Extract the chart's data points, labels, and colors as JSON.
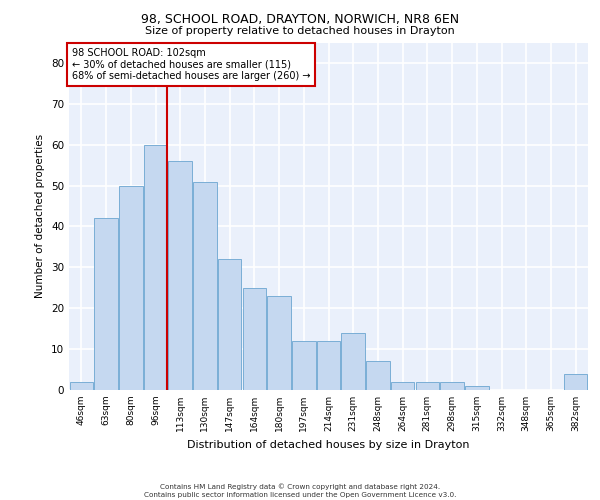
{
  "title_line1": "98, SCHOOL ROAD, DRAYTON, NORWICH, NR8 6EN",
  "title_line2": "Size of property relative to detached houses in Drayton",
  "xlabel": "Distribution of detached houses by size in Drayton",
  "ylabel": "Number of detached properties",
  "categories": [
    "46sqm",
    "63sqm",
    "80sqm",
    "96sqm",
    "113sqm",
    "130sqm",
    "147sqm",
    "164sqm",
    "180sqm",
    "197sqm",
    "214sqm",
    "231sqm",
    "248sqm",
    "264sqm",
    "281sqm",
    "298sqm",
    "315sqm",
    "332sqm",
    "348sqm",
    "365sqm",
    "382sqm"
  ],
  "values": [
    2,
    42,
    50,
    60,
    56,
    51,
    32,
    25,
    23,
    12,
    12,
    14,
    7,
    2,
    2,
    2,
    1,
    0,
    0,
    0,
    4
  ],
  "bar_color": "#c5d8f0",
  "bar_edge_color": "#7aaed6",
  "background_color": "#eaf0fb",
  "grid_color": "#ffffff",
  "vline_x_index": 3,
  "vline_color": "#cc0000",
  "annotation_text": "98 SCHOOL ROAD: 102sqm\n← 30% of detached houses are smaller (115)\n68% of semi-detached houses are larger (260) →",
  "annotation_box_color": "#ffffff",
  "annotation_box_edge_color": "#cc0000",
  "footer_line1": "Contains HM Land Registry data © Crown copyright and database right 2024.",
  "footer_line2": "Contains public sector information licensed under the Open Government Licence v3.0.",
  "ylim": [
    0,
    85
  ],
  "yticks": [
    0,
    10,
    20,
    30,
    40,
    50,
    60,
    70,
    80
  ]
}
